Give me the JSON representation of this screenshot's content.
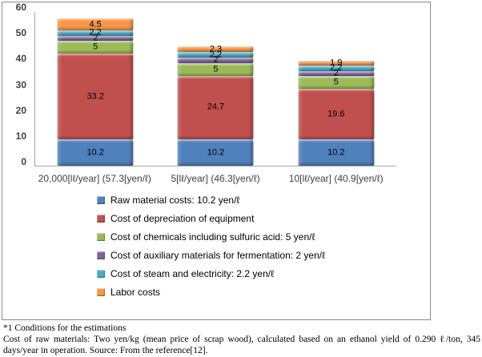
{
  "chart_data": {
    "type": "bar",
    "stacked": true,
    "title": "",
    "grid": false,
    "legend_position": "bottom",
    "categories": [
      "20,000[lℓ/year] (57.3[yen/ℓ)",
      "5[lℓ/year] (46.3[yen/ℓ)",
      "10[lℓ/year] (40.9[yen/ℓ)"
    ],
    "series": [
      {
        "name": "Raw material costs: 10.2 yen/ℓ",
        "color": "#4F81BD",
        "values": [
          10.2,
          10.2,
          10.2
        ]
      },
      {
        "name": "Cost of depreciation of equipment",
        "color": "#C0504D",
        "values": [
          33.2,
          24.7,
          19.6
        ]
      },
      {
        "name": "Cost of chemicals including sulfuric acid: 5 yen/ℓ",
        "color": "#9BBB59",
        "values": [
          5,
          5,
          5
        ]
      },
      {
        "name": "Cost of auxiliary materials  for fermentation: 2 yen/ℓ",
        "color": "#8064A2",
        "values": [
          2,
          2,
          2
        ]
      },
      {
        "name": "Cost of steam and electricity: 2.2 yen/ℓ",
        "color": "#4BACC6",
        "values": [
          2.2,
          2.2,
          2.2
        ]
      },
      {
        "name": "Labor costs",
        "color": "#F79646",
        "values": [
          4.5,
          2.3,
          1.9
        ]
      }
    ],
    "y_axis": {
      "min": 0,
      "max": 60,
      "step": 10,
      "ticks": [
        0,
        10,
        20,
        30,
        40,
        50,
        60
      ]
    }
  },
  "footnote": {
    "line1": "*1 Conditions for the estimations",
    "line2": "Cost of raw materials: Two yen/kg (mean price of scrap wood), calculated based on an ethanol yield of 0.290 ℓ/ton, 345 days/year in operation. Source: From the reference[12]."
  }
}
